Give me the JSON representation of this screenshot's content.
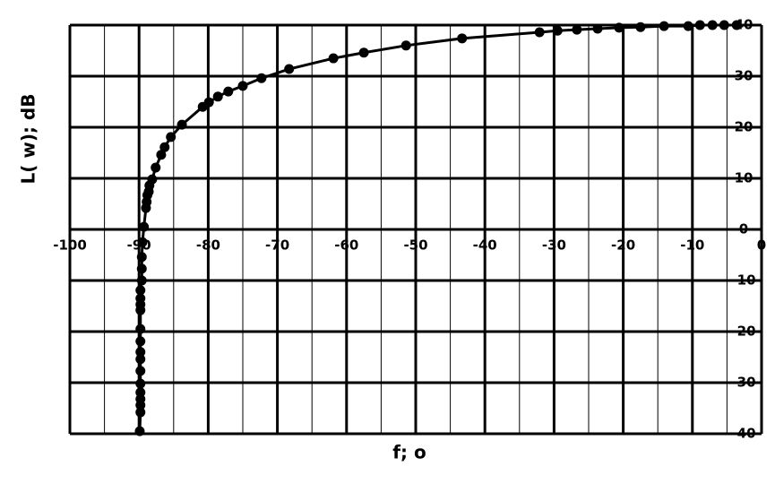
{
  "chart_data": {
    "type": "line",
    "xlabel": "f; o",
    "ylabel": "L( w); dB",
    "xlim": [
      -100,
      0
    ],
    "ylim": [
      -40,
      40
    ],
    "xticks": [
      -100,
      -90,
      -80,
      -70,
      -60,
      -50,
      -40,
      -30,
      -20,
      -10,
      0
    ],
    "yticks": [
      40,
      30,
      20,
      10,
      0,
      -10,
      -20,
      -30,
      -40
    ],
    "grid": true,
    "series": [
      {
        "color": "#000000",
        "x": [
          -3.6,
          -5.4,
          -7.1,
          -8.9,
          -10.6,
          -14.1,
          -17.5,
          -20.6,
          -23.7,
          -26.7,
          -29.5,
          -32.1,
          -43.3,
          -51.4,
          -57.5,
          -61.9,
          -68.3,
          -72.3,
          -75,
          -77.1,
          -78.6,
          -79.9,
          -80.8,
          -83.8,
          -85.4,
          -86.3,
          -86.8,
          -87.6,
          -88.1,
          -88.5,
          -88.6,
          -88.8,
          -88.9,
          -89,
          -89.3,
          -89.5,
          -89.6,
          -89.6,
          -89.6,
          -89.8,
          -89.8,
          -89.8,
          -89.8,
          -89.8,
          -89.8,
          -89.8,
          -89.8,
          -89.8,
          -89.8,
          -89.8,
          -89.8,
          -89.8,
          -89.8,
          -89.9
        ],
        "values": [
          40,
          40,
          40,
          40,
          39.8,
          39.8,
          39.6,
          39.5,
          39.3,
          39.1,
          38.9,
          38.6,
          37.4,
          36,
          34.6,
          33.5,
          31.4,
          29.6,
          28.1,
          27,
          26,
          24.9,
          24,
          20.5,
          18.1,
          16.1,
          14.6,
          12.1,
          9.8,
          8.6,
          7.4,
          6.7,
          5.4,
          4.2,
          0.5,
          -2.5,
          -5.4,
          -7.7,
          -10,
          -11.9,
          -13.5,
          -14.7,
          -15.8,
          -19.5,
          -21.9,
          -24,
          -25.4,
          -27.7,
          -30.2,
          -31.9,
          -33.2,
          -34.4,
          -35.8,
          -39.5
        ]
      }
    ]
  }
}
